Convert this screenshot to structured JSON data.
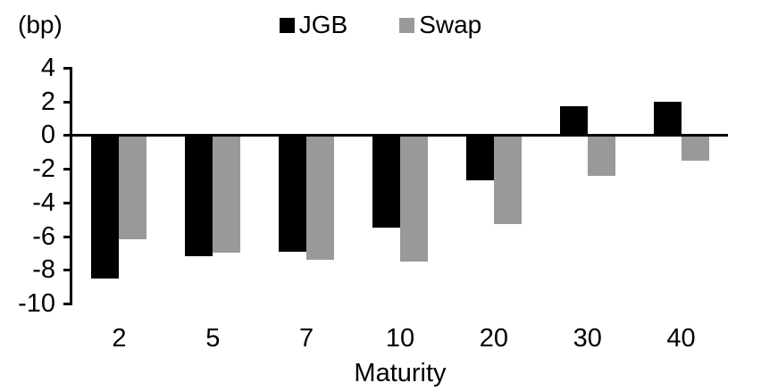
{
  "chart": {
    "unit_label": "(bp)"
  },
  "chart_data": {
    "type": "bar",
    "categories": [
      "2",
      "5",
      "7",
      "10",
      "20",
      "30",
      "40"
    ],
    "series": [
      {
        "name": "JGB",
        "color": "#000000",
        "values": [
          -8.5,
          -7.2,
          -6.9,
          -5.5,
          -2.7,
          1.7,
          2.0
        ]
      },
      {
        "name": "Swap",
        "color": "#999999",
        "values": [
          -6.2,
          -7.0,
          -7.4,
          -7.5,
          -5.3,
          -2.4,
          -1.5
        ]
      }
    ],
    "title": "",
    "xlabel": "Maturity",
    "ylabel": "(bp)",
    "ylim": [
      -10,
      4
    ],
    "yticks": [
      4,
      2,
      0,
      -2,
      -4,
      -6,
      -8,
      -10
    ],
    "grid": false,
    "legend_position": "top-center"
  }
}
